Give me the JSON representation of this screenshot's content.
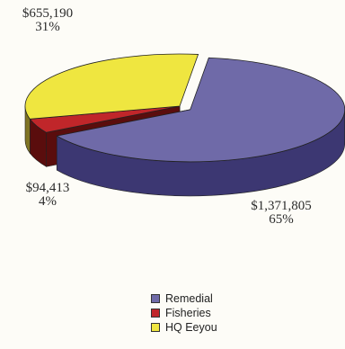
{
  "chart_data": {
    "type": "pie",
    "three_d": true,
    "title": "",
    "slices": [
      {
        "name": "Remedial",
        "value": 1371805,
        "value_label": "$1,371,805",
        "percent": 65,
        "percent_label": "65%",
        "color": "#6f6aa8",
        "side_color": "#3c3772"
      },
      {
        "name": "Fisheries",
        "value": 94413,
        "value_label": "$94,413",
        "percent": 4,
        "percent_label": "4%",
        "color": "#c0262a",
        "side_color": "#5a0d0d"
      },
      {
        "name": "HQ Eeyou",
        "value": 655190,
        "value_label": "$655,190",
        "percent": 31,
        "percent_label": "31%",
        "color": "#efe640",
        "side_color": "#7f7424"
      }
    ],
    "legend_position": "bottom"
  }
}
